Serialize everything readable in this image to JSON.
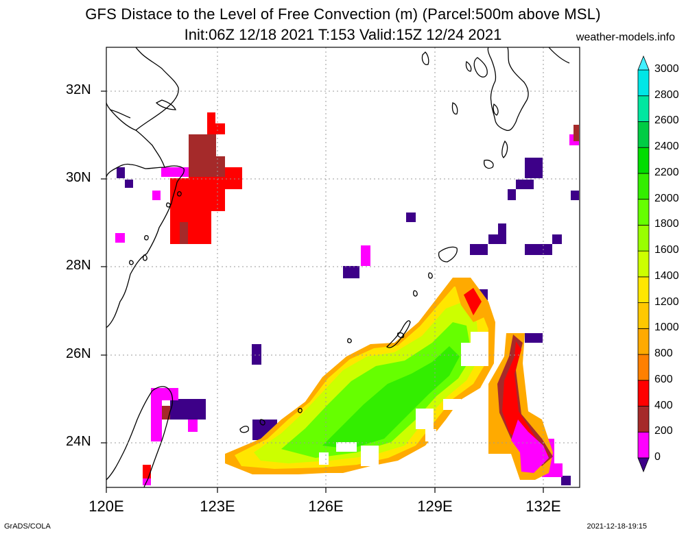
{
  "title": {
    "line1": "GFS Distace to the Level of Free Convection (m) (Parcel:500m above MSL)",
    "line2": "Init:06Z 12/18 2021 T:153 Valid:15Z 12/24 2021",
    "site": "weather-models.info"
  },
  "footer": {
    "left": "GrADS/COLA",
    "right": "2021-12-18-19:15"
  },
  "map": {
    "lon_range": [
      120,
      133
    ],
    "lat_range": [
      23,
      33
    ],
    "lon_ticks": [
      "120E",
      "123E",
      "126E",
      "129E",
      "132E"
    ],
    "lat_ticks": [
      "24N",
      "26N",
      "28N",
      "30N",
      "32N"
    ],
    "grid": "dotted"
  },
  "colorbar": {
    "levels": [
      "0",
      "200",
      "400",
      "600",
      "800",
      "1000",
      "1200",
      "1400",
      "1600",
      "1800",
      "2000",
      "2200",
      "2400",
      "2600",
      "2800",
      "3000"
    ],
    "colors": [
      "#3d0088",
      "#ff00ff",
      "#a52a2a",
      "#ff0000",
      "#ff8000",
      "#ffaa00",
      "#ffc800",
      "#ffe600",
      "#ccff00",
      "#99ff00",
      "#66ff00",
      "#33ee00",
      "#00dd00",
      "#00cc44",
      "#00e6a0",
      "#00e6e6",
      "#40f0ff"
    ],
    "under_color": "#3d0088",
    "over_color": "#40f0ff"
  }
}
